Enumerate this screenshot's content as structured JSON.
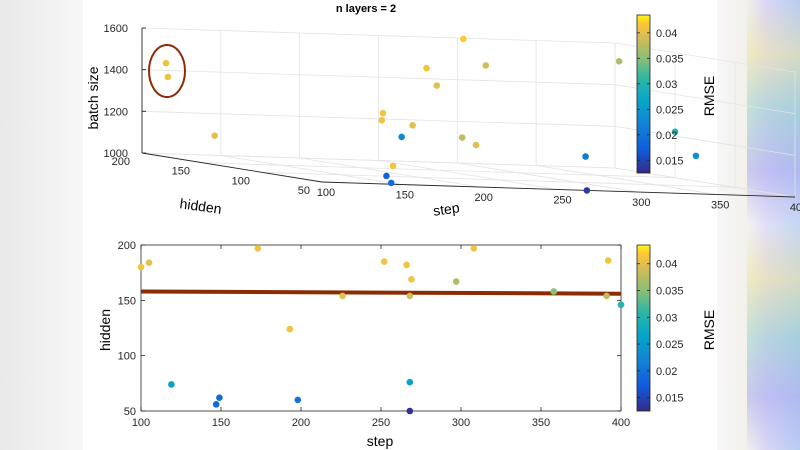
{
  "chart_data": [
    {
      "type": "scatter3d",
      "title": "n layers = 2",
      "xlabel": "step",
      "ylabel": "hidden",
      "zlabel": "batch size",
      "xlim": [
        100,
        400
      ],
      "ylim": [
        50,
        200
      ],
      "zlim": [
        1000,
        1600
      ],
      "xticks": [
        "100",
        "150",
        "200",
        "250",
        "300",
        "350",
        "400"
      ],
      "yticks": [
        "50",
        "100",
        "150",
        "200"
      ],
      "zticks": [
        "1000",
        "1200",
        "1400",
        "1600"
      ],
      "grid": true,
      "colorbar": {
        "label": "RMSE",
        "range": [
          0.0125,
          0.0435
        ],
        "ticks": [
          "0.04",
          "0.035",
          "0.03",
          "0.025",
          "0.02",
          "0.015"
        ]
      },
      "annotation": "brown ellipse around two points at top-left",
      "points": [
        {
          "x": 100,
          "y": 180,
          "z": 1450,
          "rmse": 0.041
        },
        {
          "x": 105,
          "y": 185,
          "z": 1380,
          "rmse": 0.041
        },
        {
          "x": 140,
          "y": 192,
          "z": 1100,
          "rmse": 0.04
        },
        {
          "x": 300,
          "y": 195,
          "z": 1600,
          "rmse": 0.042
        },
        {
          "x": 280,
          "y": 150,
          "z": 1510,
          "rmse": 0.039
        },
        {
          "x": 250,
          "y": 160,
          "z": 1480,
          "rmse": 0.041
        },
        {
          "x": 255,
          "y": 158,
          "z": 1400,
          "rmse": 0.04
        },
        {
          "x": 230,
          "y": 170,
          "z": 1250,
          "rmse": 0.041
        },
        {
          "x": 245,
          "y": 165,
          "z": 1200,
          "rmse": 0.04
        },
        {
          "x": 265,
          "y": 150,
          "z": 1160,
          "rmse": 0.038
        },
        {
          "x": 270,
          "y": 145,
          "z": 1130,
          "rmse": 0.04
        },
        {
          "x": 195,
          "y": 125,
          "z": 1250,
          "rmse": 0.041
        },
        {
          "x": 200,
          "y": 115,
          "z": 1180,
          "rmse": 0.023
        },
        {
          "x": 290,
          "y": 80,
          "z": 1140,
          "rmse": 0.021
        },
        {
          "x": 225,
          "y": 155,
          "z": 1010,
          "rmse": 0.041
        },
        {
          "x": 395,
          "y": 190,
          "z": 1520,
          "rmse": 0.037
        },
        {
          "x": 380,
          "y": 150,
          "z": 1450,
          "rmse": 0.041
        },
        {
          "x": 360,
          "y": 80,
          "z": 1160,
          "rmse": 0.024
        },
        {
          "x": 400,
          "y": 150,
          "z": 1220,
          "rmse": 0.03
        },
        {
          "x": 150,
          "y": 62,
          "z": 1030,
          "rmse": 0.018
        },
        {
          "x": 150,
          "y": 58,
          "z": 1000,
          "rmse": 0.019
        },
        {
          "x": 268,
          "y": 50,
          "z": 1000,
          "rmse": 0.014
        }
      ]
    },
    {
      "type": "scatter",
      "xlabel": "step",
      "ylabel": "hidden",
      "xlim": [
        100,
        400
      ],
      "ylim": [
        50,
        200
      ],
      "xticks": [
        "100",
        "150",
        "200",
        "250",
        "300",
        "350",
        "400"
      ],
      "yticks": [
        "50",
        "100",
        "150",
        "200"
      ],
      "colorbar": {
        "label": "RMSE",
        "range": [
          0.0125,
          0.0435
        ],
        "ticks": [
          "0.04",
          "0.035",
          "0.03",
          "0.025",
          "0.02",
          "0.015"
        ]
      },
      "trend_line": {
        "x": [
          100,
          400
        ],
        "y": [
          158,
          156
        ],
        "color": "#8b2c05"
      },
      "points": [
        {
          "x": 100,
          "y": 180,
          "rmse": 0.041
        },
        {
          "x": 105,
          "y": 184,
          "rmse": 0.04
        },
        {
          "x": 173,
          "y": 197,
          "rmse": 0.041
        },
        {
          "x": 252,
          "y": 185,
          "rmse": 0.041
        },
        {
          "x": 266,
          "y": 182,
          "rmse": 0.041
        },
        {
          "x": 269,
          "y": 169,
          "rmse": 0.041
        },
        {
          "x": 308,
          "y": 197,
          "rmse": 0.041
        },
        {
          "x": 226,
          "y": 154,
          "rmse": 0.04
        },
        {
          "x": 268,
          "y": 154,
          "rmse": 0.039
        },
        {
          "x": 297,
          "y": 167,
          "rmse": 0.037
        },
        {
          "x": 193,
          "y": 124,
          "rmse": 0.041
        },
        {
          "x": 392,
          "y": 186,
          "rmse": 0.041
        },
        {
          "x": 391,
          "y": 154,
          "rmse": 0.038
        },
        {
          "x": 358,
          "y": 158,
          "rmse": 0.035
        },
        {
          "x": 400,
          "y": 146,
          "rmse": 0.03
        },
        {
          "x": 119,
          "y": 74,
          "rmse": 0.026
        },
        {
          "x": 268,
          "y": 76,
          "rmse": 0.026
        },
        {
          "x": 149,
          "y": 62,
          "rmse": 0.019
        },
        {
          "x": 147,
          "y": 56,
          "rmse": 0.019
        },
        {
          "x": 198,
          "y": 60,
          "rmse": 0.02
        },
        {
          "x": 268,
          "y": 50,
          "rmse": 0.013
        }
      ]
    }
  ]
}
